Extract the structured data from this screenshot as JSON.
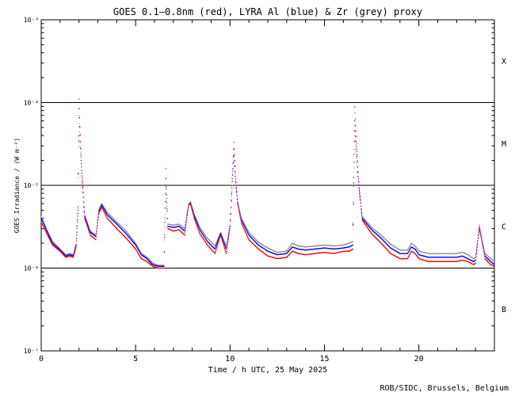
{
  "chart_data": {
    "type": "scatter",
    "title": "GOES 0.1–0.8nm (red), LYRA Al (blue) & Zr (grey) proxy",
    "xlabel": "Time / h UTC, 25 May 2025",
    "ylabel": "GOES Irradiance / (W m⁻²)",
    "xlim": [
      0,
      24
    ],
    "ylim": [
      1e-07,
      0.001
    ],
    "yscale": "log",
    "xticks": [
      0,
      5,
      10,
      15,
      20
    ],
    "xtick_labels": [
      "0",
      "5",
      "10",
      "15",
      "20"
    ],
    "yticks": [
      1e-07,
      1e-06,
      1e-05,
      0.0001,
      0.001
    ],
    "ytick_labels": [
      "10⁻⁷",
      "10⁻⁶",
      "10⁻⁵",
      "10⁻⁴",
      "10⁻³"
    ],
    "flare_class_lines": [
      1e-06,
      1e-05,
      0.0001
    ],
    "flare_class_labels": [
      {
        "label": "B",
        "value": 3.2e-07
      },
      {
        "label": "C",
        "value": 3.2e-06
      },
      {
        "label": "M",
        "value": 3.2e-05
      },
      {
        "label": "X",
        "value": 0.00032
      }
    ],
    "series": [
      {
        "name": "GOES 0.1–0.8nm",
        "color": "#ff0000",
        "x": [
          0.0,
          0.3,
          0.6,
          1.0,
          1.3,
          1.5,
          1.7,
          1.85,
          1.95,
          2.0,
          2.05,
          2.15,
          2.3,
          2.6,
          2.9,
          3.05,
          3.2,
          3.5,
          4.0,
          4.5,
          5.0,
          5.3,
          5.6,
          5.9,
          6.2,
          6.5,
          6.6,
          6.7,
          7.0,
          7.3,
          7.6,
          7.8,
          7.9,
          8.1,
          8.4,
          8.8,
          9.2,
          9.5,
          9.8,
          10.0,
          10.2,
          10.3,
          10.4,
          10.6,
          11.0,
          11.5,
          12.0,
          12.5,
          13.0,
          13.3,
          13.6,
          14.0,
          14.5,
          15.0,
          15.5,
          16.0,
          16.3,
          16.5,
          16.6,
          16.8,
          17.0,
          17.5,
          18.0,
          18.5,
          19.0,
          19.4,
          19.6,
          19.8,
          20.0,
          20.5,
          21.0,
          21.5,
          22.0,
          22.3,
          22.6,
          22.9,
          23.0,
          23.2,
          23.5,
          23.8,
          24.0
        ],
        "y": [
          3.6e-06,
          2.6e-06,
          1.9e-06,
          1.6e-06,
          1.35e-06,
          1.4e-06,
          1.35e-06,
          1.8e-06,
          5e-06,
          0.00011,
          5e-05,
          1.5e-05,
          4e-06,
          2.5e-06,
          2.2e-06,
          4.5e-06,
          5.5e-06,
          4e-06,
          3e-06,
          2.3e-06,
          1.7e-06,
          1.3e-06,
          1.2e-06,
          1.05e-06,
          1e-06,
          1e-06,
          1.6e-05,
          3e-06,
          2.8e-06,
          2.9e-06,
          2.5e-06,
          5.8e-06,
          6e-06,
          4e-06,
          2.6e-06,
          1.9e-06,
          1.5e-06,
          2.5e-06,
          1.5e-06,
          3e-06,
          3.3e-05,
          1.2e-05,
          6e-06,
          3.5e-06,
          2.2e-06,
          1.7e-06,
          1.4e-06,
          1.3e-06,
          1.35e-06,
          1.6e-06,
          1.5e-06,
          1.45e-06,
          1.5e-06,
          1.55e-06,
          1.5e-06,
          1.6e-06,
          1.6e-06,
          1.7e-06,
          8.8e-05,
          1.2e-05,
          3.8e-06,
          2.6e-06,
          2e-06,
          1.5e-06,
          1.3e-06,
          1.3e-06,
          1.6e-06,
          1.5e-06,
          1.3e-06,
          1.2e-06,
          1.2e-06,
          1.2e-06,
          1.2e-06,
          1.25e-06,
          1.2e-06,
          1.1e-06,
          1.15e-06,
          3.3e-06,
          1.3e-06,
          1.1e-06,
          1.05e-06
        ]
      },
      {
        "name": "LYRA Al proxy",
        "color": "#0000ff",
        "x": [
          0.0,
          0.3,
          0.6,
          1.0,
          1.3,
          1.5,
          1.7,
          1.85,
          1.95,
          2.0,
          2.05,
          2.15,
          2.3,
          2.6,
          2.9,
          3.05,
          3.2,
          3.5,
          4.0,
          4.5,
          5.0,
          5.3,
          5.6,
          5.9,
          6.2,
          6.5,
          6.6,
          6.7,
          7.0,
          7.3,
          7.6,
          7.8,
          7.9,
          8.1,
          8.4,
          8.8,
          9.2,
          9.5,
          9.8,
          10.0,
          10.2,
          10.3,
          10.4,
          10.6,
          11.0,
          11.5,
          12.0,
          12.5,
          13.0,
          13.3,
          13.6,
          14.0,
          14.5,
          15.0,
          15.5,
          16.0,
          16.3,
          16.5,
          16.6,
          16.8,
          17.0,
          17.5,
          18.0,
          18.5,
          19.0,
          19.4,
          19.6,
          19.8,
          20.0,
          20.5,
          21.0,
          21.5,
          22.0,
          22.3,
          22.6,
          22.9,
          23.0,
          23.2,
          23.5,
          23.8,
          24.0
        ],
        "y": [
          4e-06,
          2.8e-06,
          2e-06,
          1.65e-06,
          1.4e-06,
          1.45e-06,
          1.4e-06,
          1.9e-06,
          5.5e-06,
          8.5e-05,
          4e-05,
          1.4e-05,
          4.2e-06,
          2.7e-06,
          2.4e-06,
          4.8e-06,
          5.8e-06,
          4.4e-06,
          3.4e-06,
          2.6e-06,
          1.9e-06,
          1.45e-06,
          1.3e-06,
          1.1e-06,
          1.05e-06,
          1.05e-06,
          1.2e-05,
          3.2e-06,
          3.1e-06,
          3.2e-06,
          2.8e-06,
          5.8e-06,
          6.2e-06,
          4.3e-06,
          2.9e-06,
          2.1e-06,
          1.7e-06,
          2.6e-06,
          1.7e-06,
          3.2e-06,
          2.7e-05,
          1.1e-05,
          6.2e-06,
          3.8e-06,
          2.5e-06,
          1.9e-06,
          1.6e-06,
          1.45e-06,
          1.5e-06,
          1.8e-06,
          1.7e-06,
          1.65e-06,
          1.7e-06,
          1.75e-06,
          1.7e-06,
          1.75e-06,
          1.8e-06,
          1.9e-06,
          6e-05,
          1.1e-05,
          4e-06,
          2.9e-06,
          2.3e-06,
          1.75e-06,
          1.5e-06,
          1.5e-06,
          1.8e-06,
          1.7e-06,
          1.45e-06,
          1.35e-06,
          1.35e-06,
          1.35e-06,
          1.35e-06,
          1.4e-06,
          1.3e-06,
          1.2e-06,
          1.25e-06,
          3.1e-06,
          1.4e-06,
          1.2e-06,
          1.1e-06
        ]
      },
      {
        "name": "LYRA Zr proxy",
        "color": "#8c8c8c",
        "x": [
          0.0,
          0.3,
          0.6,
          1.0,
          1.3,
          1.5,
          1.7,
          1.85,
          1.95,
          2.0,
          2.05,
          2.15,
          2.3,
          2.6,
          2.9,
          3.05,
          3.2,
          3.5,
          4.0,
          4.5,
          5.0,
          5.3,
          5.6,
          5.9,
          6.2,
          6.5,
          6.6,
          6.7,
          7.0,
          7.3,
          7.6,
          7.8,
          7.9,
          8.1,
          8.4,
          8.8,
          9.2,
          9.5,
          9.8,
          10.0,
          10.2,
          10.3,
          10.4,
          10.6,
          11.0,
          11.5,
          12.0,
          12.5,
          13.0,
          13.3,
          13.6,
          14.0,
          14.5,
          15.0,
          15.5,
          16.0,
          16.3,
          16.5,
          16.6,
          16.8,
          17.0,
          17.5,
          18.0,
          18.5,
          19.0,
          19.4,
          19.6,
          19.8,
          20.0,
          20.5,
          21.0,
          21.5,
          22.0,
          22.3,
          22.6,
          22.9,
          23.0,
          23.2,
          23.5,
          23.8,
          24.0
        ],
        "y": [
          4.2e-06,
          2.9e-06,
          2.1e-06,
          1.7e-06,
          1.45e-06,
          1.5e-06,
          1.45e-06,
          1.95e-06,
          5.2e-06,
          7e-05,
          3.5e-05,
          1.3e-05,
          4.4e-06,
          2.8e-06,
          2.5e-06,
          5e-06,
          6e-06,
          4.7e-06,
          3.6e-06,
          2.8e-06,
          2e-06,
          1.5e-06,
          1.35e-06,
          1.15e-06,
          1.08e-06,
          1.08e-06,
          9e-06,
          3.4e-06,
          3.3e-06,
          3.4e-06,
          3e-06,
          5.5e-06,
          6.3e-06,
          4.5e-06,
          3.1e-06,
          2.3e-06,
          1.85e-06,
          2.7e-06,
          1.85e-06,
          3.3e-06,
          2.2e-05,
          1e-05,
          6.4e-06,
          4e-06,
          2.7e-06,
          2.05e-06,
          1.75e-06,
          1.55e-06,
          1.6e-06,
          2e-06,
          1.85e-06,
          1.8e-06,
          1.85e-06,
          1.9e-06,
          1.85e-06,
          1.9e-06,
          2e-06,
          2.1e-06,
          4.5e-05,
          1e-05,
          4.2e-06,
          3.1e-06,
          2.5e-06,
          1.95e-06,
          1.65e-06,
          1.65e-06,
          2e-06,
          1.85e-06,
          1.6e-06,
          1.5e-06,
          1.5e-06,
          1.5e-06,
          1.5e-06,
          1.55e-06,
          1.45e-06,
          1.3e-06,
          1.35e-06,
          3e-06,
          1.5e-06,
          1.3e-06,
          1.2e-06
        ]
      }
    ],
    "credit": "ROB/SIDC, Brussels, Belgium"
  }
}
